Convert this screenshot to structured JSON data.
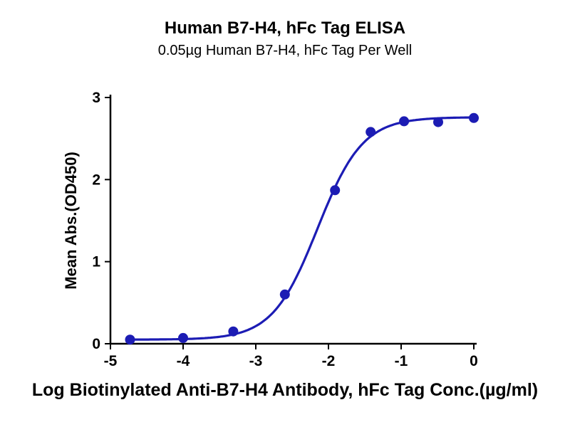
{
  "chart_data": {
    "type": "scatter",
    "title": "Human B7-H4, hFc Tag ELISA",
    "subtitle": "0.05µg Human B7-H4, hFc Tag Per Well",
    "xlabel": "Log Biotinylated Anti-B7-H4 Antibody, hFc Tag Conc.(µg/ml)",
    "ylabel": "Mean Abs.(OD450)",
    "xlim": [
      -5,
      0
    ],
    "ylim": [
      0,
      3
    ],
    "x_ticks": [
      -5,
      -4,
      -3,
      -2,
      -1,
      0
    ],
    "y_ticks": [
      0,
      1,
      2,
      3
    ],
    "grid": false,
    "legend": "none",
    "series": [
      {
        "x": [
          -4.73,
          -4.0,
          -3.31,
          -2.6,
          -1.91,
          -1.42,
          -0.96,
          -0.49,
          0
        ],
        "y": [
          0.05,
          0.07,
          0.15,
          0.6,
          1.87,
          2.58,
          2.71,
          2.7,
          2.75
        ],
        "color": "#1C1CB4",
        "marker": "circle"
      }
    ],
    "fit_curve": {
      "model": "4PL",
      "bottom": 0.05,
      "top": 2.76,
      "log_ec50": -2.15,
      "hill_slope": 1.4,
      "x_range": [
        -4.73,
        0
      ]
    }
  },
  "colors": {
    "accent": "#1C1CB4",
    "axis": "#000000",
    "background": "#FFFFFF"
  }
}
